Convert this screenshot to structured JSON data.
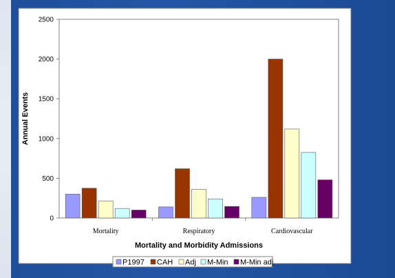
{
  "chart_data": {
    "type": "bar",
    "title": "",
    "xlabel": "Mortality and Morbidity Admissions",
    "ylabel": "Annual Events",
    "ylim": [
      0,
      2500
    ],
    "yticks": [
      0,
      500,
      1000,
      1500,
      2000,
      2500
    ],
    "categories": [
      "Mortality",
      "Respiratory",
      "Cardiovascular"
    ],
    "series": [
      {
        "name": "P1997",
        "color": "#9999ff",
        "values": [
          300,
          140,
          260
        ]
      },
      {
        "name": "CAH",
        "color": "#993300",
        "values": [
          375,
          620,
          2000
        ]
      },
      {
        "name": "Adj",
        "color": "#ffffcc",
        "values": [
          215,
          360,
          1120
        ]
      },
      {
        "name": "M-Min",
        "color": "#ccffff",
        "values": [
          120,
          240,
          825
        ]
      },
      {
        "name": "M-Min adj",
        "color": "#660066",
        "values": [
          100,
          145,
          480
        ]
      }
    ],
    "grid": false,
    "legend_position": "bottom"
  }
}
